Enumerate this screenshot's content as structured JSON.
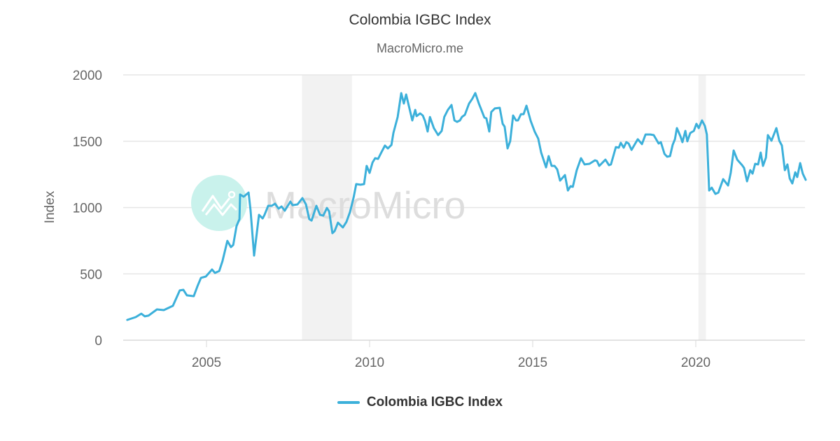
{
  "header": {
    "title": "Colombia IGBC Index",
    "subtitle": "MacroMicro.me"
  },
  "watermark": {
    "text": "MacroMicro",
    "logo_color": "#c9f2ec",
    "text_color": "#dddddd"
  },
  "legend": {
    "items": [
      {
        "label": "Colombia IGBC Index",
        "color": "#3cb0da"
      }
    ]
  },
  "colors": {
    "series": "#3cb0da",
    "grid": "#e6e6e6",
    "axis": "#d8d8d8",
    "recession": "#f2f2f2",
    "tick_text": "#666666"
  },
  "chart_data": {
    "type": "line",
    "title": "Colombia IGBC Index",
    "subtitle": "MacroMicro.me",
    "xlabel": "",
    "ylabel": "Index",
    "ylim": [
      0,
      2000
    ],
    "xlim": [
      2002.4,
      2023.3
    ],
    "yticks": [
      0,
      500,
      1000,
      1500,
      2000
    ],
    "xticks": [
      2005,
      2010,
      2015,
      2020
    ],
    "grid": true,
    "legend_position": "bottom",
    "shaded_regions": [
      {
        "label": "recession",
        "start": 2007.93,
        "end": 2009.46
      },
      {
        "label": "recession",
        "start": 2020.08,
        "end": 2020.31
      }
    ],
    "series": [
      {
        "name": "Colombia IGBC Index",
        "points": [
          [
            2002.57,
            153
          ],
          [
            2002.83,
            174
          ],
          [
            2003.0,
            200
          ],
          [
            2003.11,
            180
          ],
          [
            2003.22,
            185
          ],
          [
            2003.48,
            232
          ],
          [
            2003.69,
            227
          ],
          [
            2003.97,
            259
          ],
          [
            2004.18,
            375
          ],
          [
            2004.29,
            380
          ],
          [
            2004.4,
            338
          ],
          [
            2004.61,
            332
          ],
          [
            2004.72,
            406
          ],
          [
            2004.83,
            470
          ],
          [
            2004.98,
            480
          ],
          [
            2005.17,
            533
          ],
          [
            2005.26,
            507
          ],
          [
            2005.39,
            522
          ],
          [
            2005.49,
            596
          ],
          [
            2005.64,
            749
          ],
          [
            2005.75,
            702
          ],
          [
            2005.82,
            718
          ],
          [
            2005.92,
            860
          ],
          [
            2006.01,
            913
          ],
          [
            2006.03,
            1098
          ],
          [
            2006.14,
            1082
          ],
          [
            2006.29,
            1113
          ],
          [
            2006.35,
            982
          ],
          [
            2006.46,
            638
          ],
          [
            2006.61,
            945
          ],
          [
            2006.72,
            918
          ],
          [
            2006.78,
            945
          ],
          [
            2006.89,
            1013
          ],
          [
            2007.0,
            1013
          ],
          [
            2007.1,
            1029
          ],
          [
            2007.21,
            992
          ],
          [
            2007.3,
            1008
          ],
          [
            2007.4,
            976
          ],
          [
            2007.57,
            1045
          ],
          [
            2007.64,
            1018
          ],
          [
            2007.79,
            1024
          ],
          [
            2007.94,
            1071
          ],
          [
            2008.05,
            1024
          ],
          [
            2008.15,
            913
          ],
          [
            2008.22,
            902
          ],
          [
            2008.37,
            1013
          ],
          [
            2008.48,
            945
          ],
          [
            2008.58,
            939
          ],
          [
            2008.69,
            997
          ],
          [
            2008.76,
            971
          ],
          [
            2008.86,
            807
          ],
          [
            2008.93,
            823
          ],
          [
            2009.03,
            886
          ],
          [
            2009.18,
            850
          ],
          [
            2009.29,
            892
          ],
          [
            2009.4,
            966
          ],
          [
            2009.51,
            1077
          ],
          [
            2009.59,
            1177
          ],
          [
            2009.72,
            1172
          ],
          [
            2009.83,
            1177
          ],
          [
            2009.91,
            1314
          ],
          [
            2010.0,
            1261
          ],
          [
            2010.09,
            1340
          ],
          [
            2010.17,
            1372
          ],
          [
            2010.26,
            1367
          ],
          [
            2010.37,
            1420
          ],
          [
            2010.47,
            1467
          ],
          [
            2010.56,
            1446
          ],
          [
            2010.67,
            1472
          ],
          [
            2010.73,
            1562
          ],
          [
            2010.86,
            1683
          ],
          [
            2010.97,
            1863
          ],
          [
            2011.05,
            1784
          ],
          [
            2011.12,
            1852
          ],
          [
            2011.31,
            1657
          ],
          [
            2011.4,
            1736
          ],
          [
            2011.44,
            1689
          ],
          [
            2011.55,
            1710
          ],
          [
            2011.63,
            1694
          ],
          [
            2011.7,
            1652
          ],
          [
            2011.78,
            1573
          ],
          [
            2011.85,
            1683
          ],
          [
            2011.97,
            1599
          ],
          [
            2012.1,
            1546
          ],
          [
            2012.21,
            1578
          ],
          [
            2012.29,
            1683
          ],
          [
            2012.4,
            1736
          ],
          [
            2012.51,
            1773
          ],
          [
            2012.6,
            1657
          ],
          [
            2012.68,
            1646
          ],
          [
            2012.77,
            1657
          ],
          [
            2012.83,
            1683
          ],
          [
            2012.92,
            1699
          ],
          [
            2013.05,
            1784
          ],
          [
            2013.15,
            1821
          ],
          [
            2013.24,
            1863
          ],
          [
            2013.35,
            1784
          ],
          [
            2013.41,
            1747
          ],
          [
            2013.52,
            1678
          ],
          [
            2013.58,
            1673
          ],
          [
            2013.67,
            1573
          ],
          [
            2013.73,
            1720
          ],
          [
            2013.84,
            1747
          ],
          [
            2013.99,
            1752
          ],
          [
            2014.08,
            1631
          ],
          [
            2014.14,
            1610
          ],
          [
            2014.23,
            1446
          ],
          [
            2014.31,
            1499
          ],
          [
            2014.4,
            1694
          ],
          [
            2014.49,
            1657
          ],
          [
            2014.55,
            1657
          ],
          [
            2014.64,
            1704
          ],
          [
            2014.72,
            1704
          ],
          [
            2014.81,
            1768
          ],
          [
            2014.94,
            1652
          ],
          [
            2015.06,
            1573
          ],
          [
            2015.17,
            1520
          ],
          [
            2015.26,
            1414
          ],
          [
            2015.41,
            1303
          ],
          [
            2015.49,
            1388
          ],
          [
            2015.58,
            1314
          ],
          [
            2015.67,
            1314
          ],
          [
            2015.75,
            1288
          ],
          [
            2015.84,
            1203
          ],
          [
            2015.99,
            1245
          ],
          [
            2016.08,
            1129
          ],
          [
            2016.16,
            1161
          ],
          [
            2016.23,
            1156
          ],
          [
            2016.35,
            1282
          ],
          [
            2016.48,
            1372
          ],
          [
            2016.59,
            1325
          ],
          [
            2016.74,
            1330
          ],
          [
            2016.91,
            1356
          ],
          [
            2016.97,
            1351
          ],
          [
            2017.04,
            1314
          ],
          [
            2017.23,
            1361
          ],
          [
            2017.34,
            1319
          ],
          [
            2017.4,
            1325
          ],
          [
            2017.55,
            1456
          ],
          [
            2017.64,
            1451
          ],
          [
            2017.7,
            1488
          ],
          [
            2017.79,
            1451
          ],
          [
            2017.87,
            1493
          ],
          [
            2017.94,
            1483
          ],
          [
            2018.03,
            1435
          ],
          [
            2018.22,
            1515
          ],
          [
            2018.35,
            1478
          ],
          [
            2018.46,
            1551
          ],
          [
            2018.61,
            1551
          ],
          [
            2018.71,
            1546
          ],
          [
            2018.86,
            1483
          ],
          [
            2018.93,
            1493
          ],
          [
            2019.04,
            1404
          ],
          [
            2019.12,
            1383
          ],
          [
            2019.21,
            1388
          ],
          [
            2019.29,
            1472
          ],
          [
            2019.36,
            1515
          ],
          [
            2019.42,
            1599
          ],
          [
            2019.53,
            1536
          ],
          [
            2019.59,
            1493
          ],
          [
            2019.68,
            1578
          ],
          [
            2019.74,
            1499
          ],
          [
            2019.83,
            1562
          ],
          [
            2019.94,
            1578
          ],
          [
            2020.02,
            1631
          ],
          [
            2020.09,
            1599
          ],
          [
            2020.19,
            1657
          ],
          [
            2020.28,
            1615
          ],
          [
            2020.34,
            1551
          ],
          [
            2020.41,
            1129
          ],
          [
            2020.49,
            1150
          ],
          [
            2020.6,
            1103
          ],
          [
            2020.69,
            1113
          ],
          [
            2020.84,
            1214
          ],
          [
            2020.99,
            1166
          ],
          [
            2021.07,
            1261
          ],
          [
            2021.16,
            1430
          ],
          [
            2021.27,
            1361
          ],
          [
            2021.42,
            1319
          ],
          [
            2021.48,
            1298
          ],
          [
            2021.57,
            1198
          ],
          [
            2021.67,
            1282
          ],
          [
            2021.74,
            1256
          ],
          [
            2021.82,
            1330
          ],
          [
            2021.91,
            1325
          ],
          [
            2021.99,
            1414
          ],
          [
            2022.06,
            1314
          ],
          [
            2022.15,
            1377
          ],
          [
            2022.21,
            1546
          ],
          [
            2022.32,
            1504
          ],
          [
            2022.47,
            1599
          ],
          [
            2022.56,
            1504
          ],
          [
            2022.64,
            1467
          ],
          [
            2022.73,
            1282
          ],
          [
            2022.81,
            1325
          ],
          [
            2022.88,
            1219
          ],
          [
            2022.96,
            1182
          ],
          [
            2023.05,
            1266
          ],
          [
            2023.11,
            1230
          ],
          [
            2023.2,
            1335
          ],
          [
            2023.28,
            1256
          ],
          [
            2023.37,
            1209
          ]
        ]
      }
    ]
  }
}
